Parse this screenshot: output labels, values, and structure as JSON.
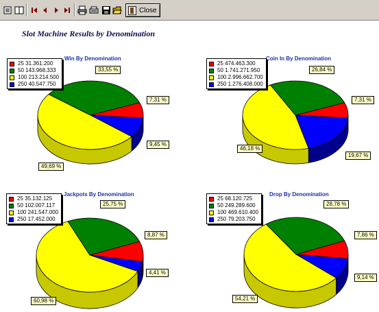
{
  "report_title": "Slot Machine Results by Denomination",
  "toolbar": {
    "close_label": "Close"
  },
  "colors": {
    "25": "#ff0000",
    "50": "#008000",
    "100": "#ffff00",
    "250": "#0000ff"
  },
  "chart_data": [
    {
      "type": "pie",
      "title": "Win By Denomination",
      "legend": [
        "25 31.361.200",
        "50 143.968.333",
        "100 213.214.500",
        "250 40.547.750"
      ],
      "categories": [
        "25",
        "50",
        "100",
        "250"
      ],
      "values": [
        31361200,
        143968333,
        213214500,
        40547750
      ],
      "percent_labels": [
        "7,31 %",
        "33,55 %",
        "49,69 %",
        "9,45 %"
      ]
    },
    {
      "type": "pie",
      "title": "Coin In By Denomination",
      "legend": [
        "25 474.463.300",
        "50 1.741.271.950",
        "100 2.996.662.700",
        "250 1.276.408.000"
      ],
      "categories": [
        "25",
        "50",
        "100",
        "250"
      ],
      "values": [
        474463300,
        1741271950,
        2996662700,
        1276408000
      ],
      "percent_labels": [
        "7,31 %",
        "26,84 %",
        "46,18 %",
        "19,67 %"
      ]
    },
    {
      "type": "pie",
      "title": "Jackpots By Denomination",
      "legend": [
        "25 35.132.125",
        "50 102.007.117",
        "100 241.547.000",
        "250 17.452.000"
      ],
      "categories": [
        "25",
        "50",
        "100",
        "250"
      ],
      "values": [
        35132125,
        102007117,
        241547000,
        17452000
      ],
      "percent_labels": [
        "8,87 %",
        "25,75 %",
        "60,98 %",
        "4,41 %"
      ]
    },
    {
      "type": "pie",
      "title": "Drop By Denomination",
      "legend": [
        "25 68.120.725",
        "50 249.289.600",
        "100 469.610.400",
        "250 79.203.750"
      ],
      "categories": [
        "25",
        "50",
        "100",
        "250"
      ],
      "values": [
        68120725,
        249289600,
        469610400,
        79203750
      ],
      "percent_labels": [
        "7,86 %",
        "28,78 %",
        "54,21 %",
        "9,14 %"
      ]
    }
  ]
}
